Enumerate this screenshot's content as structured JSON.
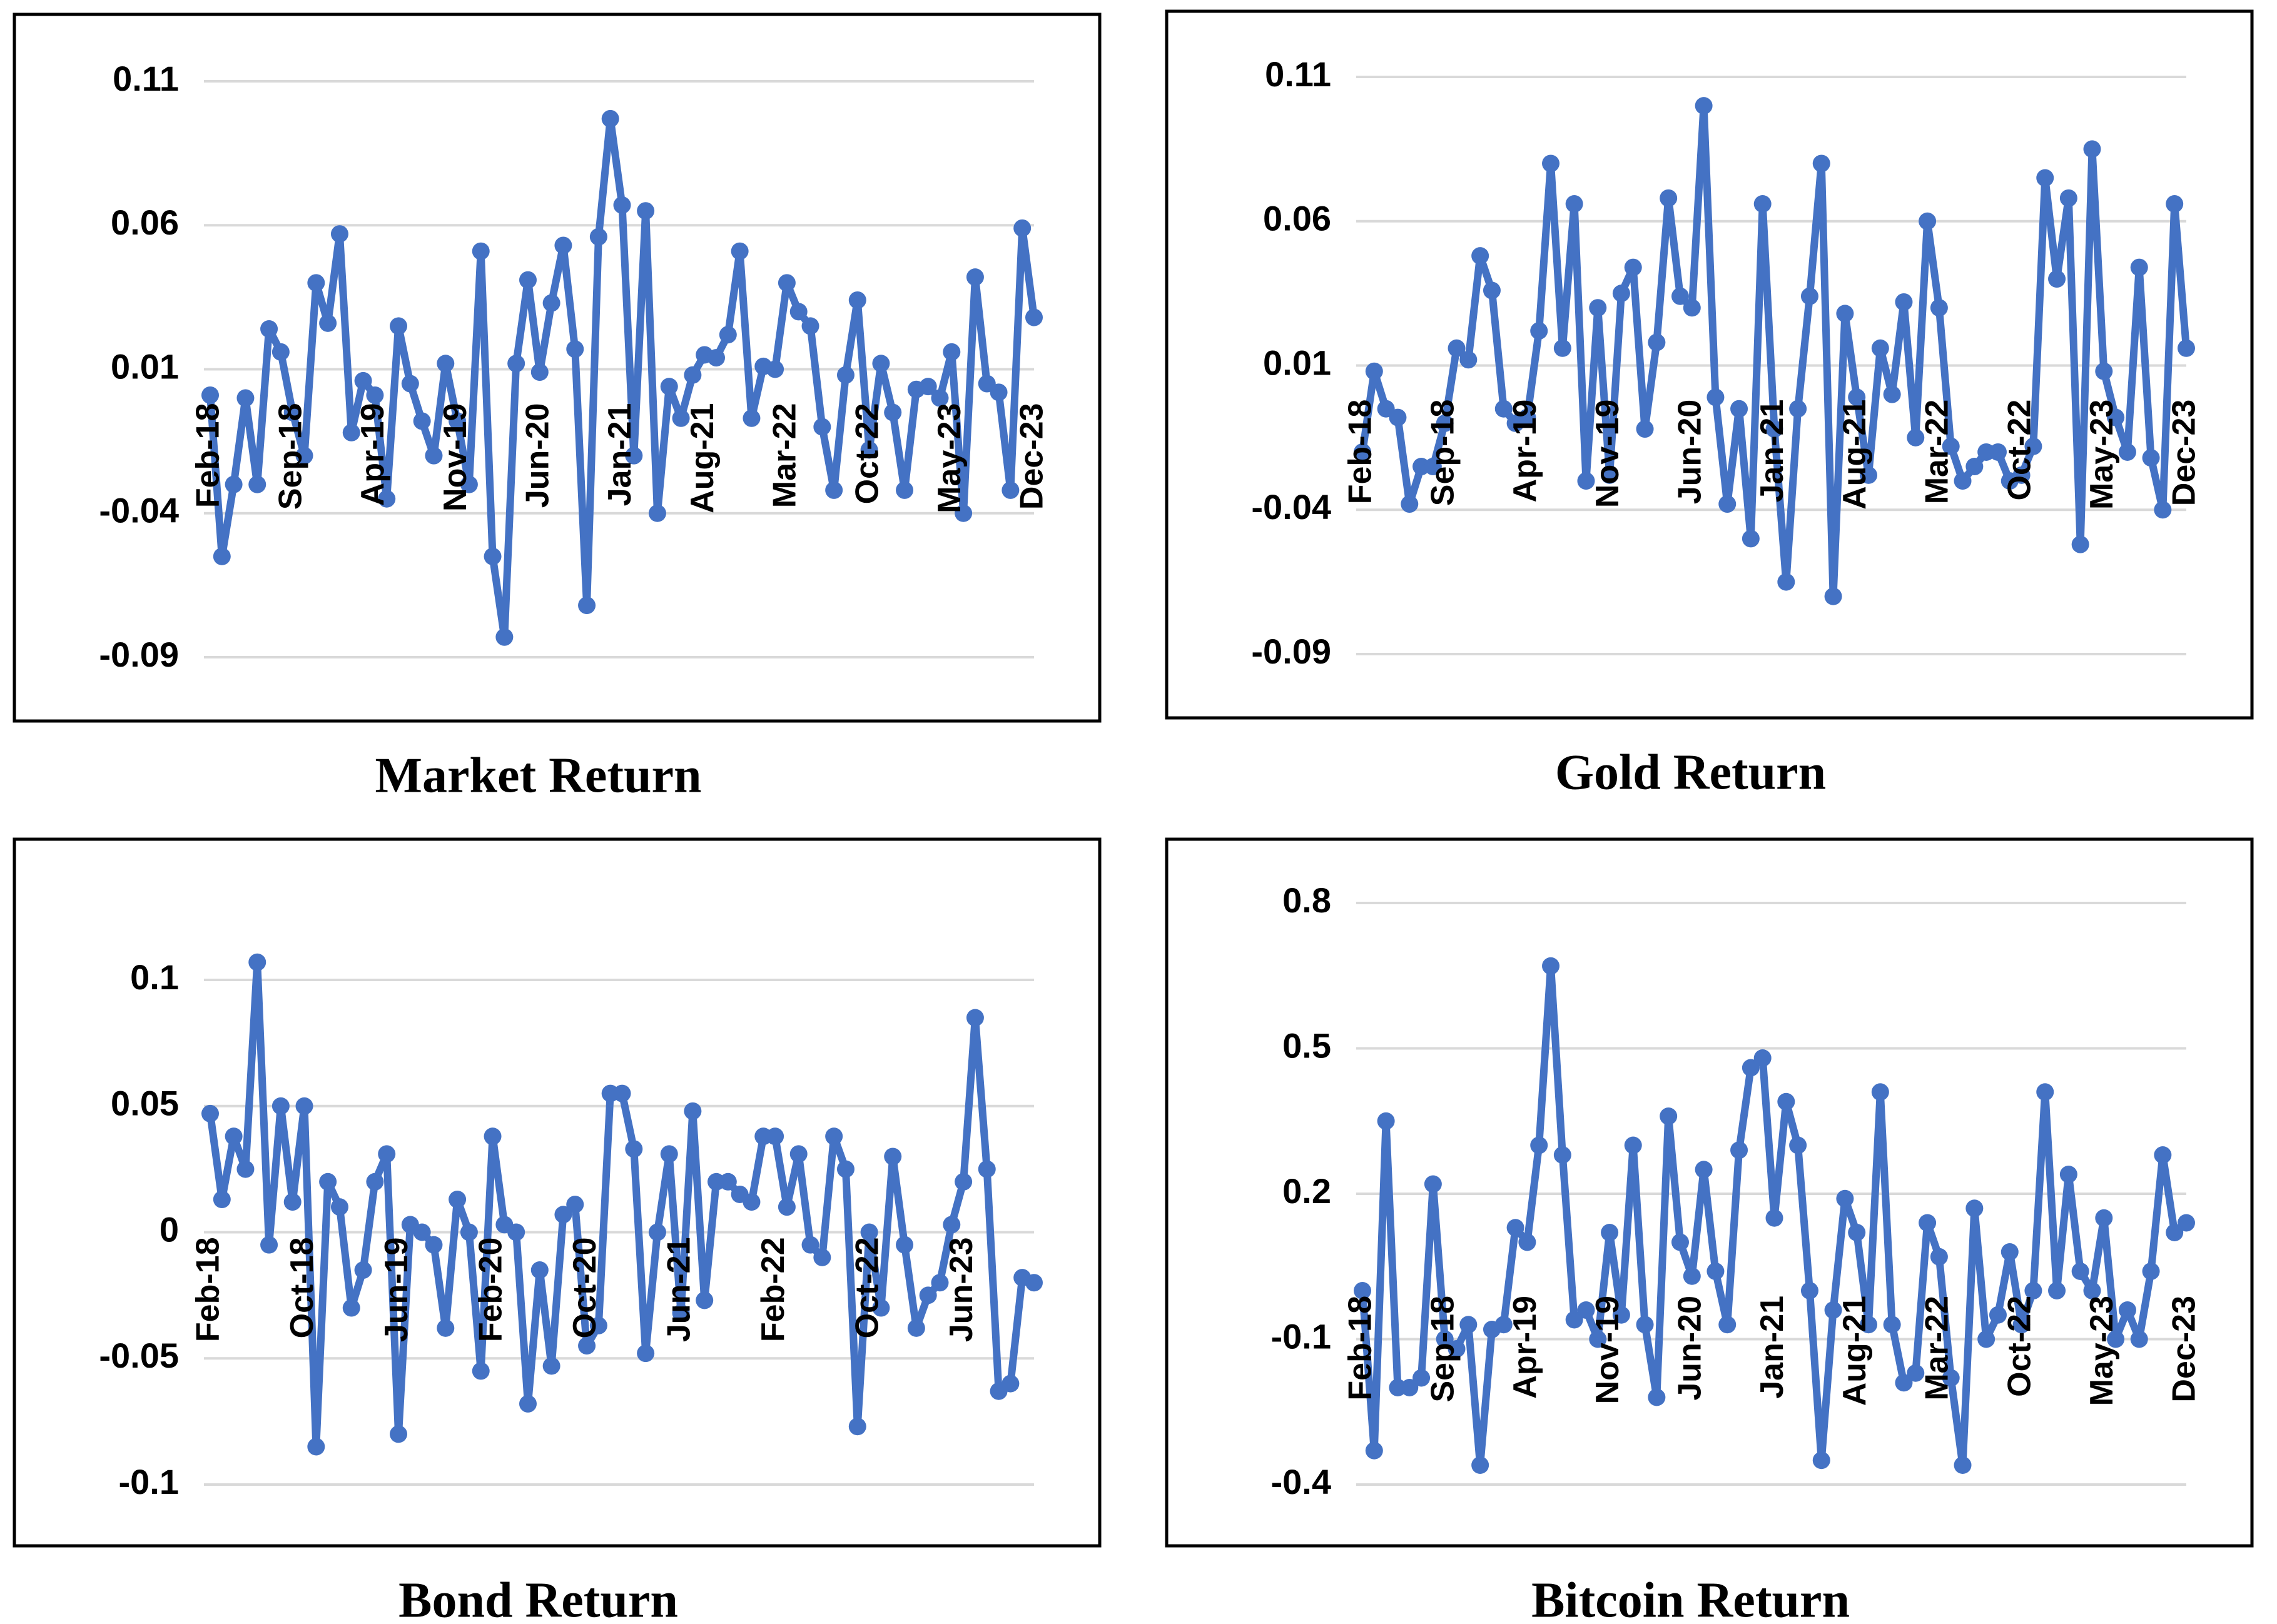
{
  "chart_data": [
    {
      "type": "line",
      "title": "Market Return",
      "color": "#4472c4",
      "grid": true,
      "ylim": [
        -0.09,
        0.11
      ],
      "yticks": [
        0.11,
        0.06,
        0.01,
        -0.04,
        -0.09
      ],
      "categories": [
        "Feb-18",
        null,
        null,
        null,
        null,
        null,
        null,
        "Sep-18",
        null,
        null,
        null,
        null,
        null,
        null,
        "Apr-19",
        null,
        null,
        null,
        null,
        null,
        null,
        "Nov-19",
        null,
        null,
        null,
        null,
        null,
        null,
        "Jun-20",
        null,
        null,
        null,
        null,
        null,
        null,
        "Jan-21",
        null,
        null,
        null,
        null,
        null,
        null,
        "Aug-21",
        null,
        null,
        null,
        null,
        null,
        null,
        "Mar-22",
        null,
        null,
        null,
        null,
        null,
        null,
        "Oct-22",
        null,
        null,
        null,
        null,
        null,
        null,
        "May-23",
        null,
        null,
        null,
        null,
        null,
        null,
        "Dec-23"
      ],
      "values": [
        0.001,
        -0.055,
        -0.03,
        0.0,
        -0.03,
        0.024,
        0.016,
        -0.005,
        -0.02,
        0.04,
        0.026,
        0.057,
        -0.012,
        0.006,
        0.001,
        -0.035,
        0.025,
        0.005,
        -0.008,
        -0.02,
        0.012,
        -0.008,
        -0.03,
        0.051,
        -0.055,
        -0.083,
        0.012,
        0.041,
        0.009,
        0.033,
        0.053,
        0.017,
        -0.072,
        0.056,
        0.097,
        0.067,
        -0.02,
        0.065,
        -0.04,
        0.004,
        -0.007,
        0.008,
        0.015,
        0.014,
        0.022,
        0.051,
        -0.007,
        0.011,
        0.01,
        0.04,
        0.03,
        0.025,
        -0.01,
        -0.032,
        0.008,
        0.034,
        -0.018,
        0.012,
        -0.005,
        -0.032,
        0.003,
        0.004,
        0.0,
        0.016,
        -0.04,
        0.042,
        0.005,
        0.002,
        -0.032,
        0.059,
        0.028
      ]
    },
    {
      "type": "line",
      "title": "Gold Return",
      "color": "#4472c4",
      "grid": true,
      "ylim": [
        -0.09,
        0.11
      ],
      "yticks": [
        0.11,
        0.06,
        0.01,
        -0.04,
        -0.09
      ],
      "categories": [
        "Feb-18",
        null,
        null,
        null,
        null,
        null,
        null,
        "Sep-18",
        null,
        null,
        null,
        null,
        null,
        null,
        "Apr-19",
        null,
        null,
        null,
        null,
        null,
        null,
        "Nov-19",
        null,
        null,
        null,
        null,
        null,
        null,
        "Jun-20",
        null,
        null,
        null,
        null,
        null,
        null,
        "Jan-21",
        null,
        null,
        null,
        null,
        null,
        null,
        "Aug-21",
        null,
        null,
        null,
        null,
        null,
        null,
        "Mar-22",
        null,
        null,
        null,
        null,
        null,
        null,
        "Oct-22",
        null,
        null,
        null,
        null,
        null,
        null,
        "May-23",
        null,
        null,
        null,
        null,
        null,
        null,
        "Dec-23"
      ],
      "values": [
        -0.02,
        0.008,
        -0.005,
        -0.008,
        -0.038,
        -0.025,
        -0.025,
        -0.01,
        0.016,
        0.012,
        0.048,
        0.036,
        -0.005,
        -0.01,
        -0.008,
        0.022,
        0.08,
        0.016,
        0.066,
        -0.03,
        0.03,
        -0.028,
        0.035,
        0.044,
        -0.012,
        0.018,
        0.068,
        0.034,
        0.03,
        0.1,
        -0.001,
        -0.038,
        -0.005,
        -0.05,
        0.066,
        -0.012,
        -0.065,
        -0.005,
        0.034,
        0.08,
        -0.07,
        0.028,
        -0.001,
        -0.028,
        0.016,
        0.0,
        0.032,
        -0.015,
        0.06,
        0.03,
        -0.018,
        -0.03,
        -0.025,
        -0.02,
        -0.02,
        -0.03,
        -0.028,
        -0.018,
        0.075,
        0.04,
        0.068,
        -0.052,
        0.085,
        0.008,
        -0.008,
        -0.02,
        0.044,
        -0.022,
        -0.04,
        0.066,
        0.016
      ]
    },
    {
      "type": "line",
      "title": "Bond Return",
      "color": "#4472c4",
      "grid": true,
      "ylim": [
        -0.1,
        0.1
      ],
      "yticks": [
        0.1,
        0.05,
        0,
        -0.05,
        -0.1
      ],
      "categories": [
        "Feb-18",
        null,
        null,
        null,
        null,
        null,
        null,
        null,
        "Oct-18",
        null,
        null,
        null,
        null,
        null,
        null,
        null,
        "Jun-19",
        null,
        null,
        null,
        null,
        null,
        null,
        null,
        "Feb-20",
        null,
        null,
        null,
        null,
        null,
        null,
        null,
        "Oct-20",
        null,
        null,
        null,
        null,
        null,
        null,
        null,
        "Jun-21",
        null,
        null,
        null,
        null,
        null,
        null,
        null,
        "Feb-22",
        null,
        null,
        null,
        null,
        null,
        null,
        null,
        "Oct-22",
        null,
        null,
        null,
        null,
        null,
        null,
        null,
        "Jun-23",
        null,
        null,
        null,
        null,
        null,
        null
      ],
      "values": [
        0.047,
        0.013,
        0.038,
        0.025,
        0.107,
        -0.005,
        0.05,
        0.012,
        0.05,
        -0.085,
        0.02,
        0.01,
        -0.03,
        -0.015,
        0.02,
        0.031,
        -0.08,
        0.003,
        0.0,
        -0.005,
        -0.038,
        0.013,
        0.0,
        -0.055,
        0.038,
        0.003,
        0.0,
        -0.068,
        -0.015,
        -0.053,
        0.007,
        0.011,
        -0.045,
        -0.037,
        0.055,
        0.055,
        0.033,
        -0.048,
        0.0,
        0.031,
        -0.032,
        0.048,
        -0.027,
        0.02,
        0.02,
        0.015,
        0.012,
        0.038,
        0.038,
        0.01,
        0.031,
        -0.005,
        -0.01,
        0.038,
        0.025,
        -0.077,
        0.0,
        -0.03,
        0.03,
        -0.005,
        -0.038,
        -0.025,
        -0.02,
        0.003,
        0.02,
        0.085,
        0.025,
        -0.063,
        -0.06,
        -0.018,
        -0.02
      ]
    },
    {
      "type": "line",
      "title": "Bitcoin Return",
      "color": "#4472c4",
      "grid": true,
      "ylim": [
        -0.4,
        0.8
      ],
      "yticks": [
        0.8,
        0.5,
        0.2,
        -0.1,
        -0.4
      ],
      "categories": [
        "Feb-18",
        null,
        null,
        null,
        null,
        null,
        null,
        "Sep-18",
        null,
        null,
        null,
        null,
        null,
        null,
        "Apr-19",
        null,
        null,
        null,
        null,
        null,
        null,
        "Nov-19",
        null,
        null,
        null,
        null,
        null,
        null,
        "Jun-20",
        null,
        null,
        null,
        null,
        null,
        null,
        "Jan-21",
        null,
        null,
        null,
        null,
        null,
        null,
        "Aug-21",
        null,
        null,
        null,
        null,
        null,
        null,
        "Mar-22",
        null,
        null,
        null,
        null,
        null,
        null,
        "Oct-22",
        null,
        null,
        null,
        null,
        null,
        null,
        "May-23",
        null,
        null,
        null,
        null,
        null,
        null,
        "Dec-23"
      ],
      "values": [
        0.0,
        -0.33,
        0.35,
        -0.2,
        -0.2,
        -0.18,
        0.22,
        -0.1,
        -0.12,
        -0.07,
        -0.36,
        -0.08,
        -0.07,
        0.13,
        0.1,
        0.3,
        0.67,
        0.28,
        -0.06,
        -0.04,
        -0.1,
        0.12,
        -0.05,
        0.3,
        -0.07,
        -0.22,
        0.36,
        0.1,
        0.03,
        0.25,
        0.04,
        -0.07,
        0.29,
        0.46,
        0.48,
        0.15,
        0.39,
        0.3,
        0.0,
        -0.35,
        -0.04,
        0.19,
        0.12,
        -0.07,
        0.41,
        -0.07,
        -0.19,
        -0.17,
        0.14,
        0.07,
        -0.18,
        -0.36,
        0.17,
        -0.1,
        -0.05,
        0.08,
        -0.07,
        0.0,
        0.41,
        0.0,
        0.24,
        0.04,
        0.0,
        0.15,
        -0.1,
        -0.04,
        -0.1,
        0.04,
        0.28,
        0.12,
        0.14
      ]
    }
  ]
}
